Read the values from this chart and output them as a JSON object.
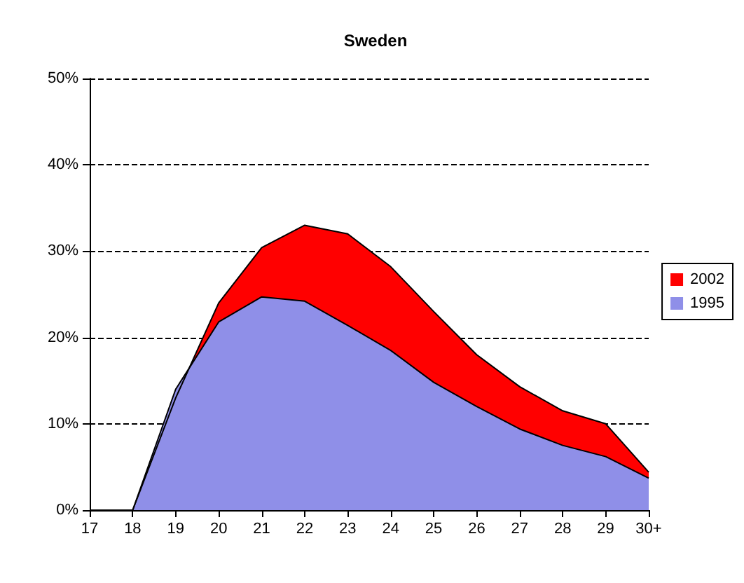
{
  "chart_data": {
    "type": "area",
    "title": "Sweden",
    "categories": [
      "17",
      "18",
      "19",
      "20",
      "21",
      "22",
      "23",
      "24",
      "25",
      "26",
      "27",
      "28",
      "29",
      "30+"
    ],
    "series": [
      {
        "name": "2002",
        "color": "#ff0000",
        "values": [
          0,
          0,
          13,
          24,
          30.4,
          33,
          32,
          28.2,
          23,
          18,
          14.3,
          11.5,
          10,
          4.4
        ]
      },
      {
        "name": "1995",
        "color": "#8f8fe8",
        "values": [
          0,
          0,
          14,
          21.8,
          24.7,
          24.2,
          21.4,
          18.5,
          14.8,
          12,
          9.4,
          7.5,
          6.2,
          3.7
        ]
      }
    ],
    "ylim": [
      0,
      50
    ],
    "yticks": [
      {
        "value": 0,
        "label": "0%"
      },
      {
        "value": 10,
        "label": "10%"
      },
      {
        "value": 20,
        "label": "20%"
      },
      {
        "value": 30,
        "label": "30%"
      },
      {
        "value": 40,
        "label": "40%"
      },
      {
        "value": 50,
        "label": "50%"
      }
    ],
    "grid": "y",
    "legend": "right"
  }
}
